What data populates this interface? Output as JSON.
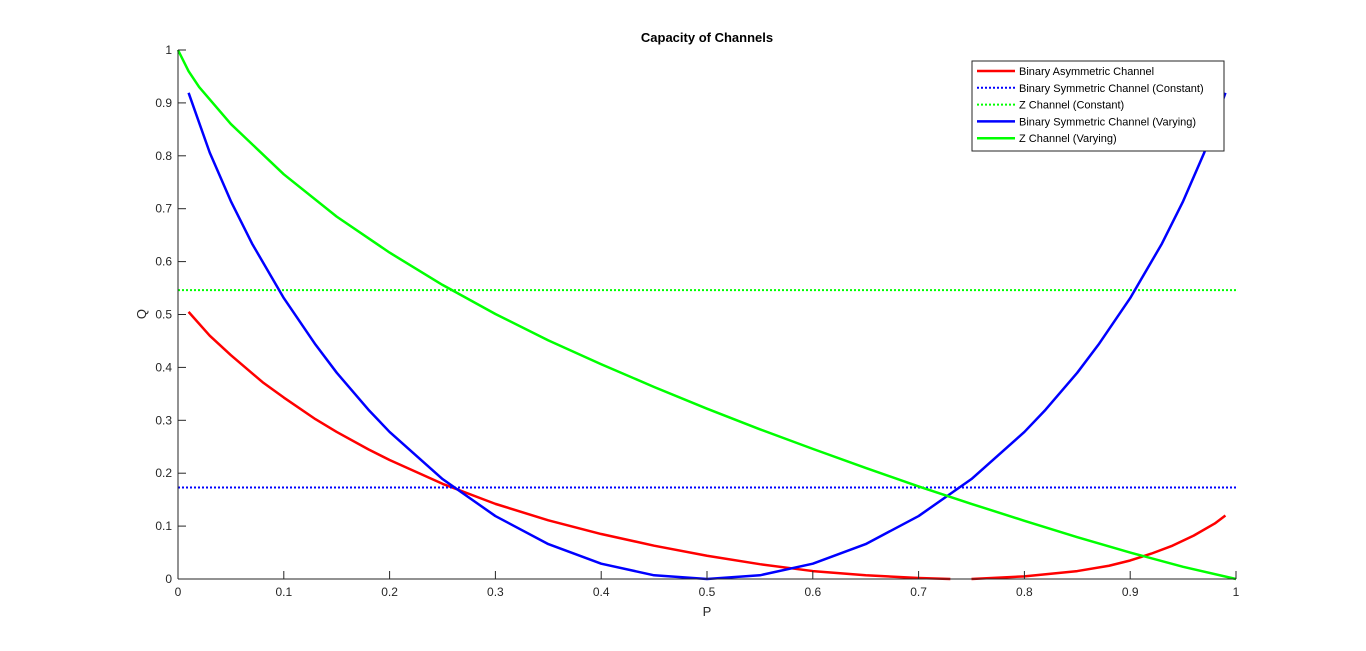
{
  "figure": {
    "background": "#ffffff"
  },
  "chart_data": {
    "type": "line",
    "title": "Capacity of Channels",
    "xlabel": "P",
    "ylabel": "Q",
    "xlim": [
      0,
      1
    ],
    "ylim": [
      0,
      1
    ],
    "xticks": [
      "0",
      "0.1",
      "0.2",
      "0.3",
      "0.4",
      "0.5",
      "0.6",
      "0.7",
      "0.8",
      "0.9",
      "1"
    ],
    "yticks": [
      "0",
      "0.1",
      "0.2",
      "0.3",
      "0.4",
      "0.5",
      "0.6",
      "0.7",
      "0.8",
      "0.9",
      "1"
    ],
    "grid": false,
    "legend_position": "top-right",
    "series": [
      {
        "name": "Binary Asymmetric Channel",
        "color": "#ff0000",
        "style": "solid",
        "segments": [
          {
            "x": [
              0.01,
              0.03,
              0.05,
              0.08,
              0.1,
              0.13,
              0.15,
              0.18,
              0.2,
              0.25,
              0.3,
              0.35,
              0.4,
              0.45,
              0.5,
              0.55,
              0.6,
              0.65,
              0.7,
              0.73
            ],
            "y": [
              0.505,
              0.46,
              0.423,
              0.372,
              0.343,
              0.302,
              0.278,
              0.245,
              0.225,
              0.18,
              0.142,
              0.111,
              0.085,
              0.063,
              0.044,
              0.028,
              0.015,
              0.007,
              0.002,
              0.0
            ]
          },
          {
            "x": [
              0.75,
              0.8,
              0.85,
              0.88,
              0.9,
              0.92,
              0.94,
              0.96,
              0.98,
              0.99
            ],
            "y": [
              0.0,
              0.005,
              0.015,
              0.025,
              0.035,
              0.048,
              0.063,
              0.082,
              0.105,
              0.12
            ]
          }
        ]
      },
      {
        "name": "Binary Symmetric Channel (Constant)",
        "color": "#0000ff",
        "style": "dotted",
        "segments": [
          {
            "x": [
              0,
              1
            ],
            "y": [
              0.173,
              0.173
            ]
          }
        ]
      },
      {
        "name": "Z Channel (Constant)",
        "color": "#00ff00",
        "style": "dotted",
        "segments": [
          {
            "x": [
              0,
              1
            ],
            "y": [
              0.546,
              0.546
            ]
          }
        ]
      },
      {
        "name": "Binary Symmetric Channel (Varying)",
        "color": "#0000ff",
        "style": "solid",
        "segments": [
          {
            "x": [
              0.01,
              0.03,
              0.05,
              0.07,
              0.1,
              0.13,
              0.15,
              0.18,
              0.2,
              0.25,
              0.3,
              0.35,
              0.4,
              0.45,
              0.5,
              0.55,
              0.6,
              0.65,
              0.7,
              0.75,
              0.8,
              0.82,
              0.85,
              0.87,
              0.9,
              0.93,
              0.95,
              0.97,
              0.99
            ],
            "y": [
              0.919,
              0.806,
              0.714,
              0.634,
              0.531,
              0.443,
              0.39,
              0.32,
              0.278,
              0.189,
              0.119,
              0.066,
              0.029,
              0.007,
              0.0,
              0.007,
              0.029,
              0.066,
              0.119,
              0.189,
              0.278,
              0.32,
              0.39,
              0.443,
              0.531,
              0.634,
              0.714,
              0.806,
              0.919
            ]
          }
        ]
      },
      {
        "name": "Z Channel (Varying)",
        "color": "#00ff00",
        "style": "solid",
        "segments": [
          {
            "x": [
              0.0,
              0.01,
              0.02,
              0.05,
              0.1,
              0.15,
              0.2,
              0.25,
              0.3,
              0.35,
              0.4,
              0.45,
              0.5,
              0.55,
              0.6,
              0.65,
              0.7,
              0.75,
              0.8,
              0.85,
              0.9,
              0.95,
              1.0
            ],
            "y": [
              1.0,
              0.96,
              0.93,
              0.86,
              0.765,
              0.685,
              0.617,
              0.556,
              0.501,
              0.451,
              0.406,
              0.363,
              0.322,
              0.283,
              0.246,
              0.21,
              0.175,
              0.142,
              0.11,
              0.079,
              0.05,
              0.023,
              0.0
            ]
          }
        ]
      }
    ]
  }
}
